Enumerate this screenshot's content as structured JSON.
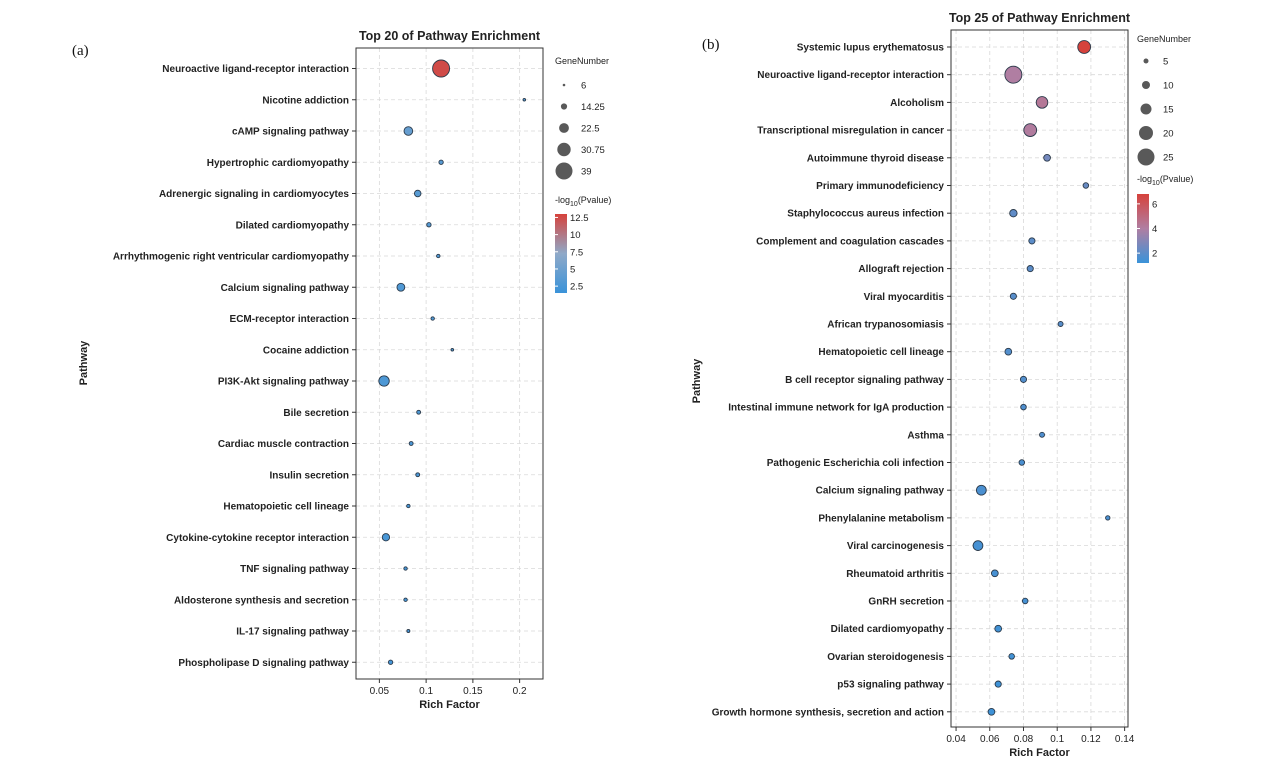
{
  "chart_data": [
    {
      "panel": "(a)",
      "type": "scatter",
      "title": "Top 20 of Pathway Enrichment",
      "xlabel": "Rich Factor",
      "ylabel": "Pathway",
      "xlim": [
        0.025,
        0.225
      ],
      "xticks": [
        0.05,
        0.1,
        0.15,
        0.2
      ],
      "xtick_labels": [
        "0.05",
        "0.1",
        "0.15",
        "0.2"
      ],
      "grid": true,
      "size_legend_title": "GeneNumber",
      "size_legend": [
        6,
        14.25,
        22.5,
        30.75,
        39
      ],
      "size_legend_labels": [
        "6",
        "14.25",
        "22.5",
        "30.75",
        "39"
      ],
      "color_legend_title": "-log10(Pvalue)",
      "color_legend_ticks": [
        12.5,
        10,
        7.5,
        5,
        2.5
      ],
      "color_legend_labels": [
        "12.5",
        "10",
        "7.5",
        "5",
        "2.5"
      ],
      "color_range": [
        1.5,
        13
      ],
      "colors": {
        "low": "#3a93d9",
        "mid": "#8fa9c8",
        "high": "#d6423c"
      },
      "legend_position": "right",
      "points": [
        {
          "pathway": "Neuroactive ligand-receptor interaction",
          "x": 0.116,
          "gene": 39,
          "p": 12.5
        },
        {
          "pathway": "Nicotine addiction",
          "x": 0.205,
          "gene": 6,
          "p": 3.0
        },
        {
          "pathway": "cAMP signaling pathway",
          "x": 0.081,
          "gene": 20,
          "p": 4.5
        },
        {
          "pathway": "Hypertrophic cardiomyopathy",
          "x": 0.116,
          "gene": 10,
          "p": 3.5
        },
        {
          "pathway": "Adrenergic signaling in cardiomyocytes",
          "x": 0.091,
          "gene": 15,
          "p": 3.5
        },
        {
          "pathway": "Dilated cardiomyopathy",
          "x": 0.103,
          "gene": 10,
          "p": 3.3
        },
        {
          "pathway": "Arrhythmogenic right ventricular cardiomyopathy",
          "x": 0.113,
          "gene": 8,
          "p": 3.2
        },
        {
          "pathway": "Calcium signaling pathway",
          "x": 0.073,
          "gene": 18,
          "p": 3.0
        },
        {
          "pathway": "ECM-receptor interaction",
          "x": 0.107,
          "gene": 8,
          "p": 3.0
        },
        {
          "pathway": "Cocaine addiction",
          "x": 0.128,
          "gene": 6,
          "p": 2.8
        },
        {
          "pathway": "PI3K-Akt signaling pathway",
          "x": 0.055,
          "gene": 24,
          "p": 2.8
        },
        {
          "pathway": "Bile secretion",
          "x": 0.092,
          "gene": 9,
          "p": 2.7
        },
        {
          "pathway": "Cardiac muscle contraction",
          "x": 0.084,
          "gene": 9,
          "p": 2.6
        },
        {
          "pathway": "Insulin secretion",
          "x": 0.091,
          "gene": 9,
          "p": 2.6
        },
        {
          "pathway": "Hematopoietic cell lineage",
          "x": 0.081,
          "gene": 8,
          "p": 2.5
        },
        {
          "pathway": "Cytokine-cytokine receptor interaction",
          "x": 0.057,
          "gene": 17,
          "p": 2.5
        },
        {
          "pathway": "TNF signaling pathway",
          "x": 0.078,
          "gene": 8,
          "p": 2.4
        },
        {
          "pathway": "Aldosterone synthesis and secretion",
          "x": 0.078,
          "gene": 8,
          "p": 2.4
        },
        {
          "pathway": "IL-17 signaling pathway",
          "x": 0.081,
          "gene": 7,
          "p": 2.3
        },
        {
          "pathway": "Phospholipase D signaling pathway",
          "x": 0.062,
          "gene": 10,
          "p": 2.3
        }
      ]
    },
    {
      "panel": "(b)",
      "type": "scatter",
      "title": "Top 25 of Pathway Enrichment",
      "xlabel": "Rich Factor",
      "ylabel": "Pathway",
      "xlim": [
        0.037,
        0.142
      ],
      "xticks": [
        0.04,
        0.06,
        0.08,
        0.1,
        0.12,
        0.14
      ],
      "xtick_labels": [
        "0.04",
        "0.06",
        "0.08",
        "0.1",
        "0.12",
        "0.14"
      ],
      "grid": true,
      "size_legend_title": "GeneNumber",
      "size_legend": [
        5,
        10,
        15,
        20,
        25
      ],
      "size_legend_labels": [
        "5",
        "10",
        "15",
        "20",
        "25"
      ],
      "color_legend_title": "-log10(Pvalue)",
      "color_legend_ticks": [
        6,
        4,
        2
      ],
      "color_legend_labels": [
        "6",
        "4",
        "2"
      ],
      "color_range": [
        1.2,
        6.8
      ],
      "colors": {
        "low": "#3a93d9",
        "mid": "#b07ea2",
        "high": "#d6423c"
      },
      "legend_position": "right",
      "points": [
        {
          "pathway": "Systemic lupus erythematosus",
          "x": 0.116,
          "gene": 18,
          "p": 6.8
        },
        {
          "pathway": "Neuroactive ligand-receptor interaction",
          "x": 0.074,
          "gene": 25,
          "p": 4.0
        },
        {
          "pathway": "Alcoholism",
          "x": 0.091,
          "gene": 16,
          "p": 4.3
        },
        {
          "pathway": "Transcriptional misregulation in cancer",
          "x": 0.084,
          "gene": 18,
          "p": 4.1
        },
        {
          "pathway": "Autoimmune thyroid disease",
          "x": 0.094,
          "gene": 8,
          "p": 2.6
        },
        {
          "pathway": "Primary immunodeficiency",
          "x": 0.117,
          "gene": 6,
          "p": 2.3
        },
        {
          "pathway": "Staphylococcus aureus infection",
          "x": 0.074,
          "gene": 9,
          "p": 2.1
        },
        {
          "pathway": "Complement and coagulation cascades",
          "x": 0.085,
          "gene": 7,
          "p": 2.0
        },
        {
          "pathway": "Allograft rejection",
          "x": 0.084,
          "gene": 7,
          "p": 2.0
        },
        {
          "pathway": "Viral myocarditis",
          "x": 0.074,
          "gene": 7,
          "p": 1.9
        },
        {
          "pathway": "African trypanosomiasis",
          "x": 0.102,
          "gene": 5,
          "p": 1.9
        },
        {
          "pathway": "Hematopoietic cell lineage",
          "x": 0.071,
          "gene": 8,
          "p": 1.8
        },
        {
          "pathway": "B cell receptor signaling pathway",
          "x": 0.08,
          "gene": 7,
          "p": 1.8
        },
        {
          "pathway": "Intestinal immune network for IgA production",
          "x": 0.08,
          "gene": 6,
          "p": 1.7
        },
        {
          "pathway": "Asthma",
          "x": 0.091,
          "gene": 5,
          "p": 1.7
        },
        {
          "pathway": "Pathogenic Escherichia coli infection",
          "x": 0.079,
          "gene": 6,
          "p": 1.6
        },
        {
          "pathway": "Calcium signaling pathway",
          "x": 0.055,
          "gene": 13,
          "p": 1.6
        },
        {
          "pathway": "Phenylalanine metabolism",
          "x": 0.13,
          "gene": 4,
          "p": 1.6
        },
        {
          "pathway": "Viral carcinogenesis",
          "x": 0.053,
          "gene": 13,
          "p": 1.5
        },
        {
          "pathway": "Rheumatoid arthritis",
          "x": 0.063,
          "gene": 8,
          "p": 1.5
        },
        {
          "pathway": "GnRH secretion",
          "x": 0.081,
          "gene": 6,
          "p": 1.5
        },
        {
          "pathway": "Dilated cardiomyopathy",
          "x": 0.065,
          "gene": 8,
          "p": 1.4
        },
        {
          "pathway": "Ovarian steroidogenesis",
          "x": 0.073,
          "gene": 6,
          "p": 1.4
        },
        {
          "pathway": "p53 signaling pathway",
          "x": 0.065,
          "gene": 7,
          "p": 1.3
        },
        {
          "pathway": "Growth hormone synthesis, secretion and action",
          "x": 0.061,
          "gene": 8,
          "p": 1.3
        }
      ]
    }
  ]
}
